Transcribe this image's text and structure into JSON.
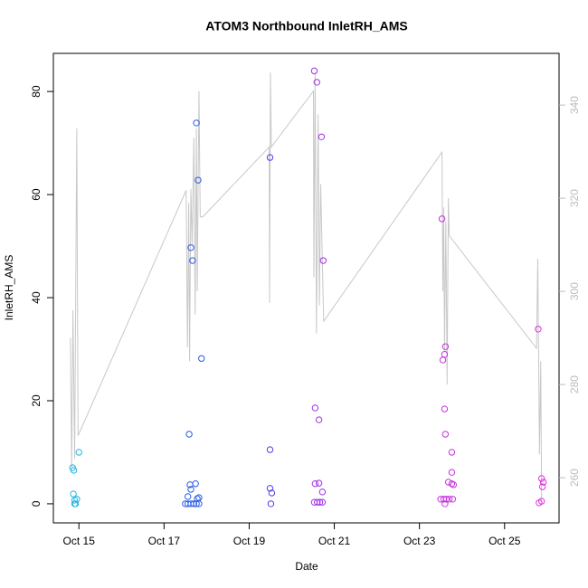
{
  "chart_data": {
    "type": "scatter",
    "title": "ATOM3 Northbound InletRH_AMS",
    "x_label": "Date",
    "y_label": "InletRH_AMS",
    "xlim": [
      14.4,
      26.28
    ],
    "xticks": [
      {
        "value": 15,
        "label": "Oct 15"
      },
      {
        "value": 17,
        "label": "Oct 17"
      },
      {
        "value": 19,
        "label": "Oct 19"
      },
      {
        "value": 21,
        "label": "Oct 21"
      },
      {
        "value": 23,
        "label": "Oct 23"
      },
      {
        "value": 25,
        "label": "Oct 25"
      }
    ],
    "ylim": [
      -3.7,
      87.4
    ],
    "yticks": [
      0,
      20,
      40,
      60,
      80
    ],
    "y2lim": [
      250.3,
      351.1
    ],
    "y2ticks": [
      260,
      280,
      300,
      320,
      340
    ],
    "series": [
      {
        "type": "line",
        "axis": "y2",
        "color": "#c8c8c8",
        "x": [
          14.8,
          14.83,
          14.86,
          14.9,
          14.95,
          14.98,
          17.52,
          17.55,
          17.58,
          17.6,
          17.63,
          17.66,
          17.7,
          17.73,
          17.76,
          17.78,
          17.82,
          17.85,
          17.91,
          19.47,
          19.48,
          19.5,
          19.52,
          20.51,
          20.52,
          20.55,
          20.58,
          20.62,
          20.65,
          20.68,
          20.75,
          23.53,
          23.55,
          23.57,
          23.59,
          23.62,
          23.65,
          23.68,
          23.7,
          23.78,
          25.75,
          25.78,
          25.82,
          25.85,
          25.87
        ],
        "values": [
          290,
          262,
          296,
          264,
          335,
          269,
          321.7,
          288,
          319,
          285,
          322,
          310,
          333,
          295,
          335,
          300,
          343,
          316,
          316,
          331,
          297.5,
          347,
          331,
          343,
          303,
          347,
          291,
          338,
          297,
          323,
          293.6,
          329.9,
          300,
          318,
          287,
          315,
          280,
          320,
          312,
          311,
          287.8,
          307,
          265,
          285,
          255
        ]
      },
      {
        "color": "#1fb4e6",
        "x": [
          14.85,
          14.88,
          14.87,
          14.9,
          14.9,
          14.92,
          14.95,
          15.0
        ],
        "values": [
          7,
          6.5,
          1.9,
          0.7,
          0,
          0,
          0.9,
          10
        ]
      },
      {
        "color": "#2a5ce6",
        "x": [
          17.59,
          17.63,
          17.67,
          17.76,
          17.8,
          17.88,
          17.61,
          17.63,
          17.56,
          17.74,
          17.5,
          17.56,
          17.63,
          17.7,
          17.76,
          17.82,
          17.78,
          17.82
        ],
        "values": [
          13.5,
          49.7,
          47.2,
          73.9,
          62.8,
          28.2,
          3.7,
          2.8,
          1.4,
          3.9,
          0,
          0,
          0,
          0,
          0,
          0,
          1,
          1.2
        ]
      },
      {
        "color": "#4a40e6",
        "x": [
          19.49,
          19.49,
          19.49,
          19.53,
          19.51
        ],
        "values": [
          67.2,
          10.5,
          3.0,
          2.1,
          0
        ]
      },
      {
        "color": "#a030e6",
        "x": [
          20.53,
          20.59,
          20.7,
          20.74,
          20.55,
          20.64,
          20.55,
          20.64,
          20.72,
          20.53,
          20.6,
          20.66,
          20.72
        ],
        "values": [
          84.0,
          81.8,
          71.2,
          47.2,
          18.6,
          16.3,
          3.9,
          4.0,
          2.3,
          0.3,
          0.3,
          0.3,
          0.3
        ]
      },
      {
        "color": "#c830e0",
        "x": [
          23.53,
          23.61,
          23.59,
          23.55,
          23.59,
          23.61,
          23.76,
          23.76,
          23.68,
          23.76,
          23.8,
          23.5,
          23.57,
          23.63,
          23.7,
          23.78,
          23.6
        ],
        "values": [
          55.3,
          30.5,
          29,
          27.9,
          18.4,
          13.5,
          10,
          6.1,
          4.2,
          3.9,
          3.7,
          0.9,
          0.9,
          0.9,
          0.9,
          0.9,
          0
        ]
      },
      {
        "color": "#e030e0",
        "x": [
          25.79,
          25.87,
          25.91,
          25.89,
          25.81,
          25.87
        ],
        "values": [
          33.9,
          4.9,
          4.2,
          3.3,
          0.2,
          0.5
        ]
      }
    ]
  }
}
